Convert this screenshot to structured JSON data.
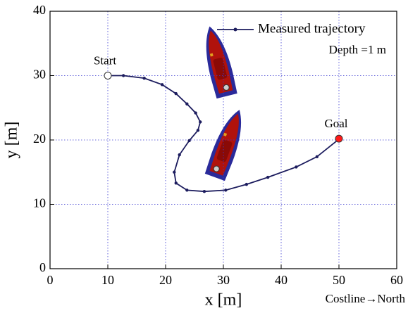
{
  "chart_data": {
    "type": "line",
    "xlabel": "x [m]",
    "ylabel": "y [m]",
    "xlim": [
      0,
      60
    ],
    "ylim": [
      0,
      40
    ],
    "xticks": [
      0,
      10,
      20,
      30,
      40,
      50,
      60
    ],
    "yticks": [
      0,
      10,
      20,
      30,
      40
    ],
    "grid": true,
    "legend": "upper right",
    "annotation": "Depth =1 m",
    "axis_note": "Costline→North",
    "series": [
      {
        "name": "Measured trajectory",
        "color": "#1c1c5e",
        "x": [
          10,
          12.7,
          16.3,
          19.4,
          21.8,
          23.7,
          25.2,
          26,
          25.6,
          24.1,
          22.4,
          21.5,
          21.8,
          23.7,
          26.7,
          30.4,
          34,
          37.7,
          42.6,
          46.2,
          50.1
        ],
        "values": [
          30,
          30,
          29.6,
          28.6,
          27.2,
          25.6,
          24.2,
          22.8,
          21.5,
          19.9,
          17.7,
          15,
          13.3,
          12.2,
          12,
          12.2,
          13.1,
          14.2,
          15.8,
          17.4,
          20.2
        ]
      }
    ],
    "points": [
      {
        "label": "Start",
        "x": 10,
        "y": 30,
        "color": "#ffffff"
      },
      {
        "label": "Goal",
        "x": 50,
        "y": 20.2,
        "color": "#ff1a1a"
      }
    ]
  }
}
